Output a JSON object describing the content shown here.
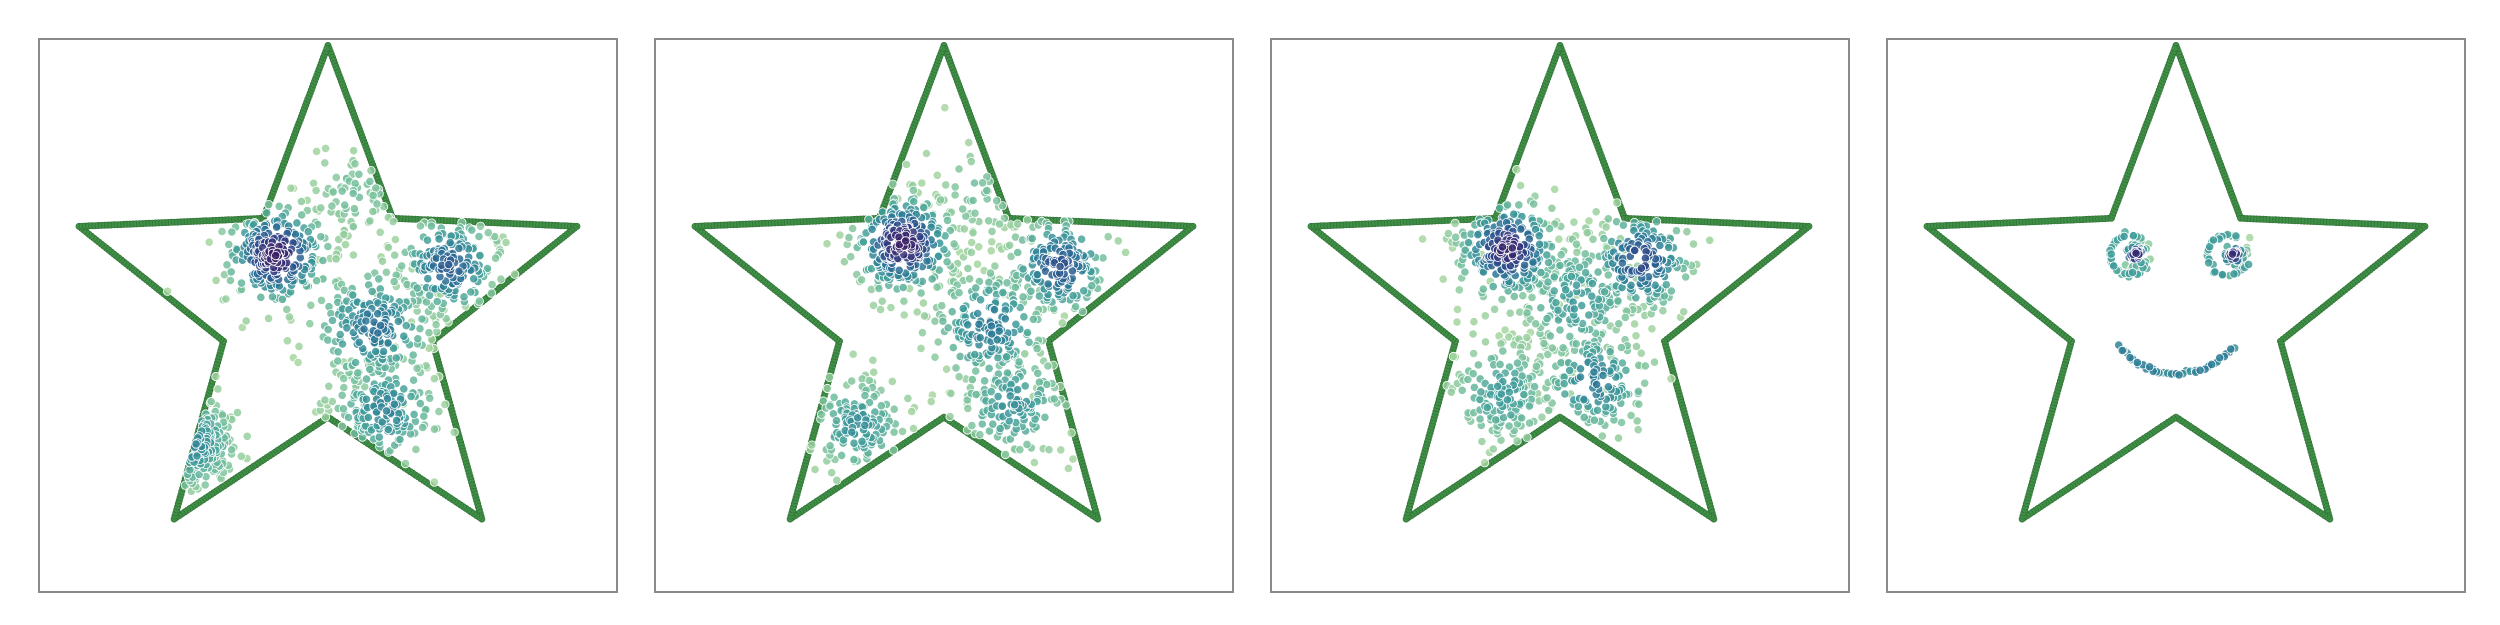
{
  "colors": {
    "outline_point": "#3f8f46",
    "outline_point_stroke": "#2f6f35",
    "frame": "#8a8a8a",
    "density_colormap": [
      "#a7d6a0",
      "#6fbc9c",
      "#3f9c9a",
      "#2c7a96",
      "#2a5690",
      "#353179",
      "#3a1a5e"
    ]
  },
  "chart_data": [
    {
      "type": "scatter",
      "title": "",
      "xlabel": "",
      "ylabel": "",
      "grid": false,
      "legend": "none",
      "xlim": [
        0,
        1
      ],
      "ylim": [
        0,
        1
      ],
      "outline": {
        "shape": "five-pointed star"
      },
      "clusters": [
        {
          "x": 0.41,
          "y": 0.61,
          "n": 260,
          "spread": 0.045,
          "density": 0.95
        },
        {
          "x": 0.71,
          "y": 0.59,
          "n": 190,
          "spread": 0.045,
          "density": 0.65
        },
        {
          "x": 0.58,
          "y": 0.48,
          "n": 220,
          "spread": 0.055,
          "density": 0.55
        },
        {
          "x": 0.26,
          "y": 0.27,
          "n": 140,
          "spread": 0.045,
          "density": 0.45
        },
        {
          "x": 0.6,
          "y": 0.33,
          "n": 180,
          "spread": 0.05,
          "density": 0.45
        },
        {
          "x": 0.55,
          "y": 0.72,
          "n": 70,
          "spread": 0.05,
          "density": 0.15
        }
      ]
    },
    {
      "type": "scatter",
      "title": "",
      "xlabel": "",
      "ylabel": "",
      "grid": false,
      "legend": "none",
      "xlim": [
        0,
        1
      ],
      "ylim": [
        0,
        1
      ],
      "outline": {
        "shape": "five-pointed star"
      },
      "clusters": [
        {
          "x": 0.43,
          "y": 0.63,
          "n": 270,
          "spread": 0.045,
          "density": 0.95
        },
        {
          "x": 0.7,
          "y": 0.59,
          "n": 180,
          "spread": 0.045,
          "density": 0.7
        },
        {
          "x": 0.58,
          "y": 0.48,
          "n": 200,
          "spread": 0.055,
          "density": 0.5
        },
        {
          "x": 0.35,
          "y": 0.3,
          "n": 140,
          "spread": 0.045,
          "density": 0.4
        },
        {
          "x": 0.62,
          "y": 0.34,
          "n": 150,
          "spread": 0.05,
          "density": 0.4
        },
        {
          "x": 0.56,
          "y": 0.72,
          "n": 60,
          "spread": 0.05,
          "density": 0.15
        }
      ]
    },
    {
      "type": "scatter",
      "title": "",
      "xlabel": "",
      "ylabel": "",
      "grid": false,
      "legend": "none",
      "xlim": [
        0,
        1
      ],
      "ylim": [
        0,
        1
      ],
      "outline": {
        "shape": "five-pointed star"
      },
      "clusters": [
        {
          "x": 0.41,
          "y": 0.62,
          "n": 230,
          "spread": 0.045,
          "density": 0.9
        },
        {
          "x": 0.64,
          "y": 0.6,
          "n": 190,
          "spread": 0.045,
          "density": 0.75
        },
        {
          "x": 0.53,
          "y": 0.53,
          "n": 220,
          "spread": 0.06,
          "density": 0.35
        },
        {
          "x": 0.4,
          "y": 0.36,
          "n": 160,
          "spread": 0.05,
          "density": 0.35
        },
        {
          "x": 0.56,
          "y": 0.38,
          "n": 150,
          "spread": 0.05,
          "density": 0.5
        }
      ]
    },
    {
      "type": "scatter",
      "title": "",
      "xlabel": "",
      "ylabel": "",
      "grid": false,
      "legend": "none",
      "xlim": [
        0,
        1
      ],
      "ylim": [
        0,
        1
      ],
      "outline": {
        "shape": "five-pointed star"
      },
      "clusters": [
        {
          "x": 0.43,
          "y": 0.61,
          "n": 40,
          "spread": 0.012,
          "density": 0.9
        },
        {
          "x": 0.6,
          "y": 0.61,
          "n": 40,
          "spread": 0.012,
          "density": 0.9
        }
      ],
      "arcs": [
        {
          "cx": 0.42,
          "cy": 0.61,
          "r": 0.035,
          "from_deg": 60,
          "to_deg": 330,
          "n": 30,
          "density": 0.3
        },
        {
          "cx": 0.59,
          "cy": 0.61,
          "r": 0.035,
          "from_deg": 60,
          "to_deg": 330,
          "n": 30,
          "density": 0.3
        },
        {
          "cx": 0.5,
          "cy": 0.53,
          "r": 0.13,
          "from_deg": 220,
          "to_deg": 320,
          "n": 40,
          "density": 0.45
        }
      ]
    }
  ]
}
